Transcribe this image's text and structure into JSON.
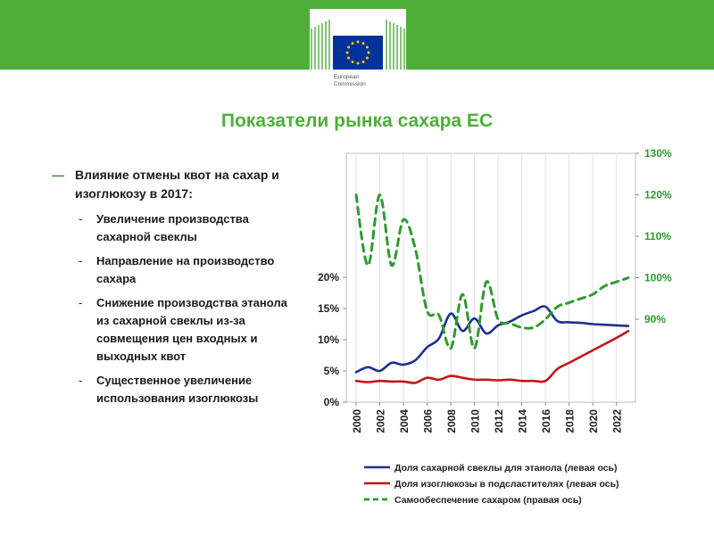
{
  "header": {
    "bar_color": "#4eae3a",
    "logo": {
      "icon": "european-commission-logo",
      "text_line1": "European",
      "text_line2": "Commission"
    }
  },
  "slide": {
    "title": "Показатели рынка сахара ЕС",
    "bullets": {
      "main": "Влияние отмены квот на сахар и изоглюкозу в 2017:",
      "subs": [
        "Увеличение производства сахарной свеклы",
        "Направление на производство сахара",
        "Снижение производства этанола из сахарной свеклы из-за совмещения цен входных и выходных квот",
        "Существенное увеличение использования изоглюкозы"
      ]
    }
  },
  "chart_data": {
    "type": "line",
    "left_axis": {
      "ticks": [
        "0%",
        "5%",
        "10%",
        "15%",
        "20%"
      ],
      "ylim": [
        0,
        20
      ]
    },
    "right_axis": {
      "ticks": [
        "90%",
        "100%",
        "110%",
        "120%",
        "130%"
      ],
      "ylim": [
        70,
        130
      ]
    },
    "x_ticks": [
      "2000",
      "2002",
      "2004",
      "2006",
      "2008",
      "2010",
      "2012",
      "2014",
      "2016",
      "2018",
      "2020",
      "2022"
    ],
    "xlim": [
      2000,
      2023
    ],
    "series": [
      {
        "name": "Доля сахарной свеклы для этанола (левая ось)",
        "axis": "left",
        "color": "#1f2f8f",
        "dash": false,
        "points": [
          [
            2000,
            4.8
          ],
          [
            2001,
            5.6
          ],
          [
            2002,
            5.0
          ],
          [
            2003,
            6.3
          ],
          [
            2004,
            6.0
          ],
          [
            2005,
            6.7
          ],
          [
            2006,
            8.8
          ],
          [
            2007,
            10.2
          ],
          [
            2008,
            14.2
          ],
          [
            2009,
            11.4
          ],
          [
            2010,
            13.4
          ],
          [
            2011,
            11.0
          ],
          [
            2012,
            12.3
          ],
          [
            2013,
            12.9
          ],
          [
            2014,
            13.9
          ],
          [
            2015,
            14.6
          ],
          [
            2016,
            15.3
          ],
          [
            2017,
            13.0
          ],
          [
            2018,
            12.8
          ],
          [
            2019,
            12.7
          ],
          [
            2020,
            12.5
          ],
          [
            2021,
            12.4
          ],
          [
            2022,
            12.3
          ],
          [
            2023,
            12.2
          ]
        ]
      },
      {
        "name": "Доля изоглюкозы в подсластителях (левая ось)",
        "axis": "left",
        "color": "#c0161b",
        "dash": false,
        "points": [
          [
            2000,
            3.4
          ],
          [
            2001,
            3.2
          ],
          [
            2002,
            3.4
          ],
          [
            2003,
            3.3
          ],
          [
            2004,
            3.3
          ],
          [
            2005,
            3.1
          ],
          [
            2006,
            3.9
          ],
          [
            2007,
            3.6
          ],
          [
            2008,
            4.2
          ],
          [
            2009,
            3.9
          ],
          [
            2010,
            3.6
          ],
          [
            2011,
            3.6
          ],
          [
            2012,
            3.5
          ],
          [
            2013,
            3.6
          ],
          [
            2014,
            3.4
          ],
          [
            2015,
            3.4
          ],
          [
            2016,
            3.4
          ],
          [
            2017,
            5.3
          ],
          [
            2018,
            6.3
          ],
          [
            2019,
            7.3
          ],
          [
            2020,
            8.3
          ],
          [
            2021,
            9.3
          ],
          [
            2022,
            10.3
          ],
          [
            2023,
            11.4
          ]
        ]
      },
      {
        "name": "Самообеспечение сахаром (правая ось)",
        "axis": "right",
        "color": "#2e9a2e",
        "dash": true,
        "points": [
          [
            2000,
            120
          ],
          [
            2001,
            103
          ],
          [
            2002,
            120
          ],
          [
            2003,
            103
          ],
          [
            2004,
            114
          ],
          [
            2005,
            107
          ],
          [
            2006,
            92
          ],
          [
            2007,
            91
          ],
          [
            2008,
            83
          ],
          [
            2009,
            96
          ],
          [
            2010,
            83
          ],
          [
            2011,
            99
          ],
          [
            2012,
            90
          ],
          [
            2013,
            89
          ],
          [
            2014,
            88
          ],
          [
            2015,
            88
          ],
          [
            2016,
            90
          ],
          [
            2017,
            93
          ],
          [
            2018,
            94
          ],
          [
            2019,
            95
          ],
          [
            2020,
            96
          ],
          [
            2021,
            98
          ],
          [
            2022,
            99
          ],
          [
            2023,
            100
          ]
        ]
      }
    ]
  }
}
